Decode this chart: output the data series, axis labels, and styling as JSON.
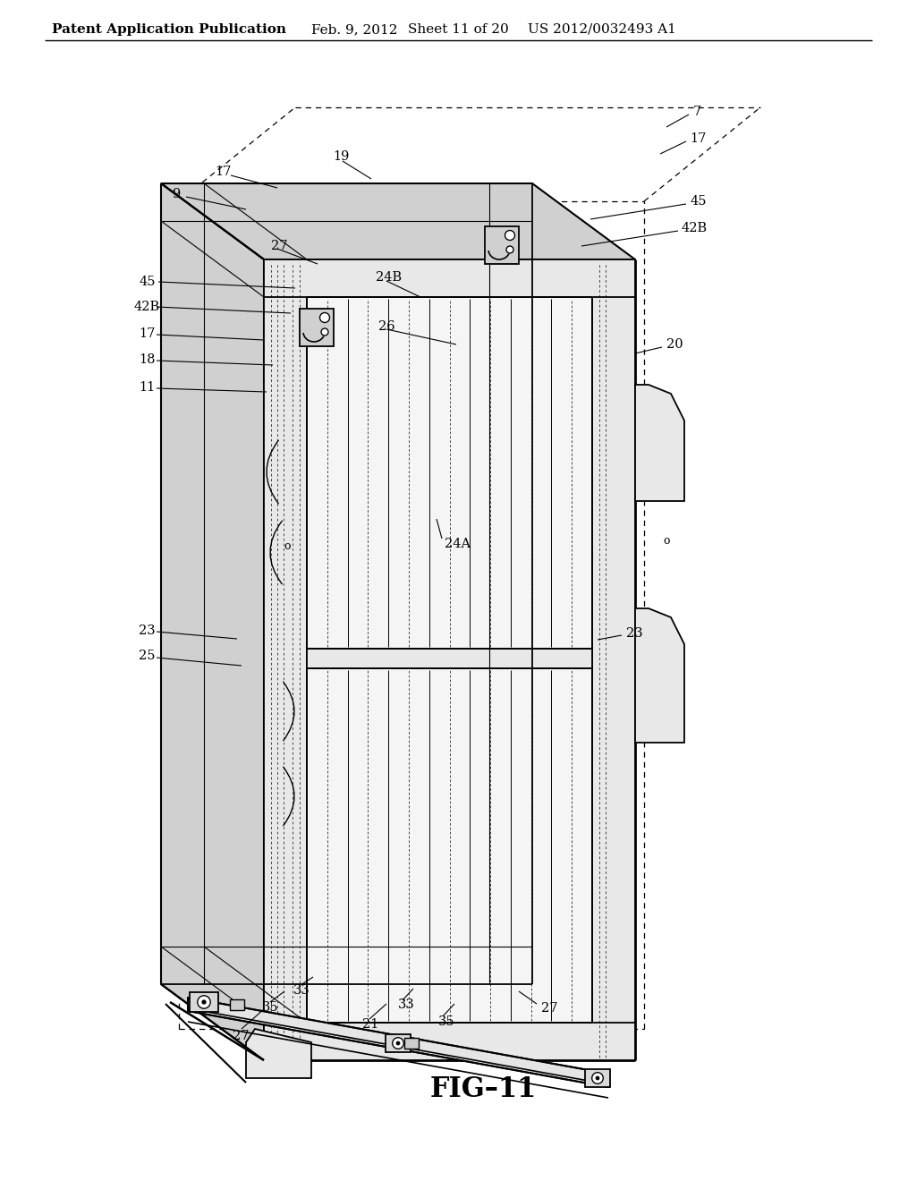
{
  "bg_color": "#ffffff",
  "line_color": "#000000",
  "header_left": "Patent Application Publication",
  "header_mid1": "Feb. 9, 2012",
  "header_mid2": "Sheet 11 of 20",
  "header_right": "US 2012/0032493 A1",
  "fig_label": "FIG–11",
  "header_fontsize": 11,
  "label_fontsize": 10.5,
  "fig_fontsize": 22,
  "gray_light": "#e8e8e8",
  "gray_mid": "#d0d0d0",
  "gray_dark": "#b8b8b8",
  "white": "#ffffff"
}
